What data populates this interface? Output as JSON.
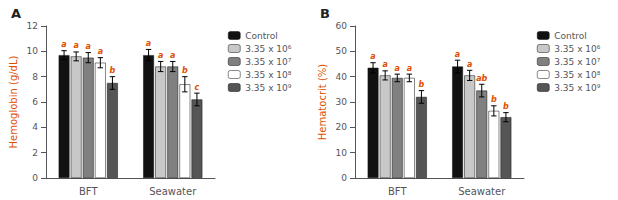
{
  "chart_data": [
    {
      "type": "bar",
      "title": "A",
      "ylabel": "Hemoglobin (g/dL)",
      "categories": [
        "BFT",
        "Seawater"
      ],
      "series": [
        {
          "name": "Control",
          "color": "#111111",
          "values": [
            9.7,
            9.7
          ],
          "errors": [
            0.35,
            0.45
          ],
          "annotations": [
            "a",
            "a"
          ]
        },
        {
          "name": "3.35 x 10⁶",
          "color": "#c8c8c8",
          "values": [
            9.6,
            8.8
          ],
          "errors": [
            0.35,
            0.4
          ],
          "annotations": [
            "a",
            "a"
          ]
        },
        {
          "name": "3.35 x 10⁷",
          "color": "#808080",
          "values": [
            9.5,
            8.8
          ],
          "errors": [
            0.4,
            0.4
          ],
          "annotations": [
            "a",
            "a"
          ]
        },
        {
          "name": "3.35 x 10⁸",
          "color": "#ffffff",
          "values": [
            9.1,
            7.4
          ],
          "errors": [
            0.4,
            0.6
          ],
          "annotations": [
            "a",
            "b"
          ]
        },
        {
          "name": "3.35 x 10⁹",
          "color": "#555555",
          "values": [
            7.5,
            6.2
          ],
          "errors": [
            0.5,
            0.5
          ],
          "annotations": [
            "b",
            "c"
          ]
        }
      ],
      "ylim": [
        0,
        12
      ],
      "yticks": [
        0,
        2,
        4,
        6,
        8,
        10,
        12
      ],
      "grid": false,
      "legend": "right"
    },
    {
      "type": "bar",
      "title": "B",
      "ylabel": "Hematocrit (%)",
      "categories": [
        "BFT",
        "Seawater"
      ],
      "series": [
        {
          "name": "Control",
          "color": "#111111",
          "values": [
            43.5,
            44.0
          ],
          "errors": [
            2.0,
            2.5
          ],
          "annotations": [
            "a",
            "a"
          ]
        },
        {
          "name": "3.35 x 10⁶",
          "color": "#c8c8c8",
          "values": [
            40.5,
            40.5
          ],
          "errors": [
            1.8,
            2.0
          ],
          "annotations": [
            "a",
            "a"
          ]
        },
        {
          "name": "3.35 x 10⁷",
          "color": "#808080",
          "values": [
            39.5,
            34.5
          ],
          "errors": [
            1.5,
            2.5
          ],
          "annotations": [
            "a",
            "ab"
          ]
        },
        {
          "name": "3.35 x 10⁸",
          "color": "#ffffff",
          "values": [
            39.5,
            26.5
          ],
          "errors": [
            1.5,
            2.0
          ],
          "annotations": [
            "a",
            "b"
          ]
        },
        {
          "name": "3.35 x 10⁹",
          "color": "#555555",
          "values": [
            32.0,
            24.0
          ],
          "errors": [
            2.5,
            1.8
          ],
          "annotations": [
            "b",
            "b"
          ]
        }
      ],
      "ylim": [
        0,
        60
      ],
      "yticks": [
        0,
        10,
        20,
        30,
        40,
        50,
        60
      ],
      "grid": false,
      "legend": "right"
    }
  ]
}
